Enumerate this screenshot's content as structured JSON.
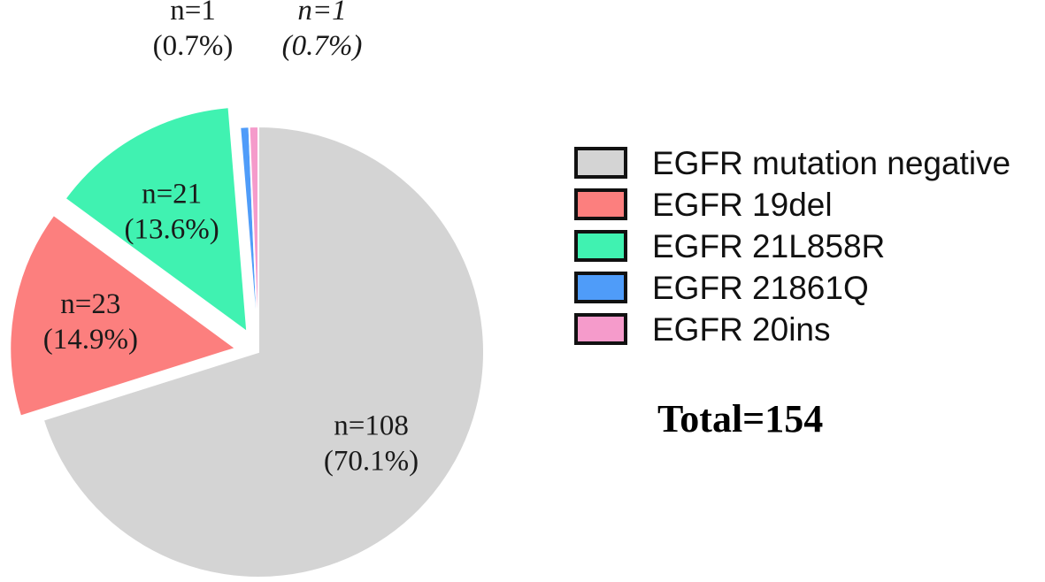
{
  "chart_data": {
    "type": "pie",
    "total_label": "Total=154",
    "slices": [
      {
        "name": "EGFR mutation negative",
        "value": 108,
        "count_label": "n=108",
        "percent_label": "(70.1%)",
        "color": "#d4d4d4",
        "exploded": false
      },
      {
        "name": "EGFR 19del",
        "value": 23,
        "count_label": "n=23",
        "percent_label": "(14.9%)",
        "color": "#fc7f7e",
        "exploded": true
      },
      {
        "name": "EGFR 21L858R",
        "value": 21,
        "count_label": "n=21",
        "percent_label": "(13.6%)",
        "color": "#40f2b1",
        "exploded": true
      },
      {
        "name": "EGFR 21861Q",
        "value": 1,
        "count_label": "n=1",
        "percent_label": "(0.7%)",
        "color": "#4f9cf9",
        "exploded": false
      },
      {
        "name": "EGFR 20ins",
        "value": 1,
        "count_label": "n=1",
        "percent_label": "(0.7%)",
        "color": "#f59bcb",
        "exploded": false
      }
    ],
    "legend": {
      "placement": "right",
      "entries": [
        "EGFR mutation negative",
        "EGFR 19del",
        "EGFR 21L858R",
        "EGFR 21861Q",
        "EGFR 20ins"
      ]
    }
  }
}
